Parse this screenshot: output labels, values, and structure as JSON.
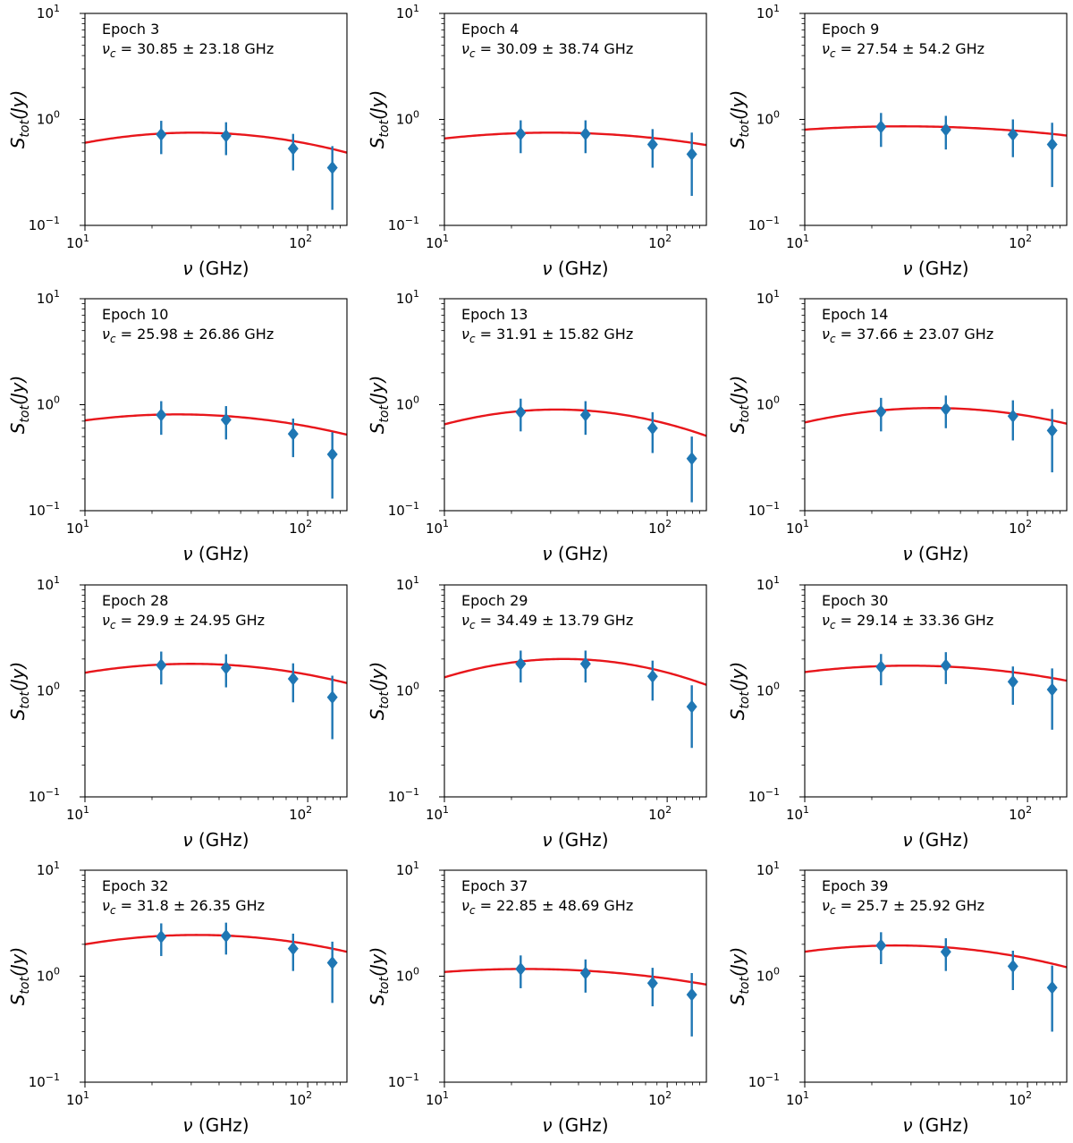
{
  "chart_data": {
    "type": "scatter",
    "layout": "grid 4x3",
    "xscale": "log",
    "yscale": "log",
    "xlim": [
      10,
      150
    ],
    "ylim": [
      0.1,
      10
    ],
    "xlabel_symbol": "ν",
    "xlabel_unit": " (GHz)",
    "ylabel_main": "S",
    "ylabel_sub": "tot",
    "ylabel_unit": "(Jy)",
    "x_ticks": [
      {
        "base": "10",
        "exp": "1"
      },
      {
        "base": "10",
        "exp": "2"
      }
    ],
    "y_ticks": [
      {
        "base": "10",
        "exp": "−1"
      },
      {
        "base": "10",
        "exp": "0"
      },
      {
        "base": "10",
        "exp": "1"
      }
    ],
    "data_x": [
      22,
      43,
      86,
      129
    ],
    "colors": {
      "points": "#1f77b4",
      "fit": "#e8161b"
    },
    "marker": "diamond",
    "fit": "curved power-law spectrum, peak at turnover frequency nu_c",
    "nu_symbol": "ν",
    "nu_sub": "c",
    "unit": "GHz",
    "panels": [
      {
        "title": "Epoch 3",
        "nu_c": "30.85",
        "nu_c_err": "23.18",
        "nu_c_value": 30.85,
        "values": [
          0.72,
          0.7,
          0.53,
          0.35
        ],
        "errors": [
          0.25,
          0.24,
          0.2,
          0.21
        ],
        "fit_peak": 0.75,
        "fit_curv": 0.4
      },
      {
        "title": "Epoch 4",
        "nu_c": "30.09",
        "nu_c_err": "38.74",
        "nu_c_value": 30.09,
        "values": [
          0.73,
          0.73,
          0.58,
          0.47
        ],
        "errors": [
          0.25,
          0.25,
          0.23,
          0.28
        ],
        "fit_peak": 0.75,
        "fit_curv": 0.24
      },
      {
        "title": "Epoch 9",
        "nu_c": "27.54",
        "nu_c_err": "54.2",
        "nu_c_value": 27.54,
        "values": [
          0.85,
          0.8,
          0.72,
          0.58
        ],
        "errors": [
          0.3,
          0.28,
          0.28,
          0.35
        ],
        "fit_peak": 0.86,
        "fit_curv": 0.16
      },
      {
        "title": "Epoch 10",
        "nu_c": "25.98",
        "nu_c_err": "26.86",
        "nu_c_value": 25.98,
        "values": [
          0.8,
          0.72,
          0.53,
          0.34
        ],
        "errors": [
          0.28,
          0.25,
          0.21,
          0.21
        ],
        "fit_peak": 0.81,
        "fit_curv": 0.33
      },
      {
        "title": "Epoch 13",
        "nu_c": "31.91",
        "nu_c_err": "15.82",
        "nu_c_value": 31.91,
        "values": [
          0.85,
          0.8,
          0.6,
          0.31
        ],
        "errors": [
          0.29,
          0.28,
          0.25,
          0.19
        ],
        "fit_peak": 0.9,
        "fit_curv": 0.55
      },
      {
        "title": "Epoch 14",
        "nu_c": "37.66",
        "nu_c_err": "23.07",
        "nu_c_value": 37.66,
        "values": [
          0.86,
          0.91,
          0.78,
          0.57
        ],
        "errors": [
          0.3,
          0.31,
          0.32,
          0.34
        ],
        "fit_peak": 0.93,
        "fit_curv": 0.41
      },
      {
        "title": "Epoch 28",
        "nu_c": "29.9",
        "nu_c_err": "24.95",
        "nu_c_value": 29.9,
        "values": [
          1.75,
          1.65,
          1.3,
          0.87
        ],
        "errors": [
          0.6,
          0.57,
          0.52,
          0.52
        ],
        "fit_peak": 1.8,
        "fit_curv": 0.37
      },
      {
        "title": "Epoch 29",
        "nu_c": "34.49",
        "nu_c_err": "13.79",
        "nu_c_value": 34.49,
        "values": [
          1.8,
          1.8,
          1.37,
          0.71
        ],
        "errors": [
          0.6,
          0.6,
          0.56,
          0.42
        ],
        "fit_peak": 2.0,
        "fit_curv": 0.6
      },
      {
        "title": "Epoch 30",
        "nu_c": "29.14",
        "nu_c_err": "33.36",
        "nu_c_value": 29.14,
        "values": [
          1.68,
          1.74,
          1.22,
          1.03
        ],
        "errors": [
          0.55,
          0.58,
          0.48,
          0.6
        ],
        "fit_peak": 1.73,
        "fit_curv": 0.28
      },
      {
        "title": "Epoch 32",
        "nu_c": "31.8",
        "nu_c_err": "26.35",
        "nu_c_value": 31.8,
        "values": [
          2.35,
          2.4,
          1.82,
          1.34
        ],
        "errors": [
          0.8,
          0.8,
          0.7,
          0.78
        ],
        "fit_peak": 2.45,
        "fit_curv": 0.35
      },
      {
        "title": "Epoch 37",
        "nu_c": "22.85",
        "nu_c_err": "48.69",
        "nu_c_value": 22.85,
        "values": [
          1.17,
          1.07,
          0.86,
          0.67
        ],
        "errors": [
          0.4,
          0.37,
          0.34,
          0.4
        ],
        "fit_peak": 1.17,
        "fit_curv": 0.22
      },
      {
        "title": "Epoch 39",
        "nu_c": "25.7",
        "nu_c_err": "25.92",
        "nu_c_value": 25.7,
        "values": [
          1.95,
          1.7,
          1.24,
          0.78
        ],
        "errors": [
          0.65,
          0.58,
          0.5,
          0.48
        ],
        "fit_peak": 1.95,
        "fit_curv": 0.35
      }
    ]
  }
}
